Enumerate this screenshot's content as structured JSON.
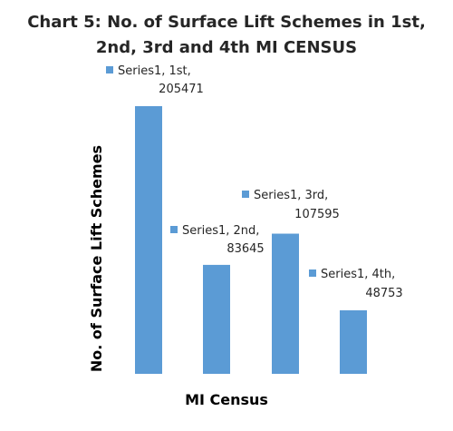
{
  "chart_data": {
    "type": "bar",
    "title": "Chart 5: No. of Surface Lift Schemes in 1st, 2nd, 3rd and 4th MI CENSUS",
    "title_lines": [
      "Chart 5: No. of Surface Lift Schemes in 1st,",
      "2nd, 3rd and 4th MI CENSUS"
    ],
    "xlabel": "MI Census",
    "ylabel": "No. of Surface Lift Schemes",
    "categories": [
      "1st",
      "2nd",
      "3rd",
      "4th"
    ],
    "series": [
      {
        "name": "Series1",
        "values": [
          205471,
          83645,
          107595,
          48753
        ],
        "color": "#5B9BD5"
      }
    ],
    "data_labels": [
      [
        "Series1, 1st,",
        "205471"
      ],
      [
        "Series1, 2nd,",
        "83645"
      ],
      [
        "Series1, 3rd,",
        "107595"
      ],
      [
        "Series1, 4th,",
        "48753"
      ]
    ],
    "ylim": [
      0,
      205471
    ],
    "grid": false,
    "legend": "none"
  }
}
